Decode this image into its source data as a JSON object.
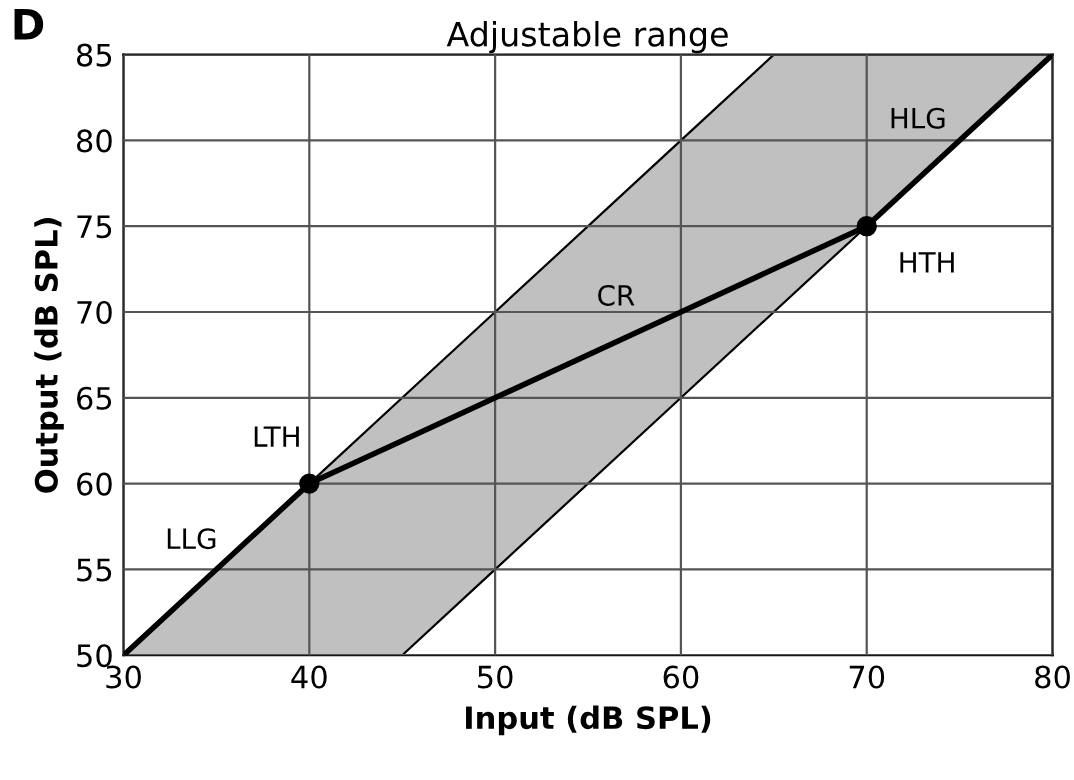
{
  "chart_data": {
    "type": "line",
    "title": "Adjustable range",
    "xlabel": "Input (dB SPL)",
    "ylabel": "Output (dB SPL)",
    "xlim": [
      30,
      80
    ],
    "ylim": [
      50,
      85
    ],
    "xticks": [
      30,
      40,
      50,
      60,
      70,
      80
    ],
    "yticks": [
      50,
      55,
      60,
      65,
      70,
      75,
      80,
      85
    ],
    "grid": true,
    "series": [
      {
        "color": "#000000",
        "marker": "none",
        "x": [
          30,
          40,
          45,
          50,
          60,
          65,
          70,
          80
        ],
        "values": [
          50,
          60,
          62.5,
          65,
          70,
          72.5,
          75,
          85
        ],
        "lower": [
          50,
          50,
          50,
          55,
          65,
          70,
          75,
          85
        ],
        "upper": [
          50,
          60,
          65,
          70,
          80,
          85,
          85,
          85
        ]
      },
      {
        "type": "scatter",
        "color": "#000000",
        "marker": "circle",
        "x": [
          40,
          70
        ],
        "values": [
          60,
          75
        ]
      }
    ],
    "annotations": [
      "D",
      "LLG",
      "LTH",
      "CR",
      "HTH",
      "HLG"
    ]
  }
}
